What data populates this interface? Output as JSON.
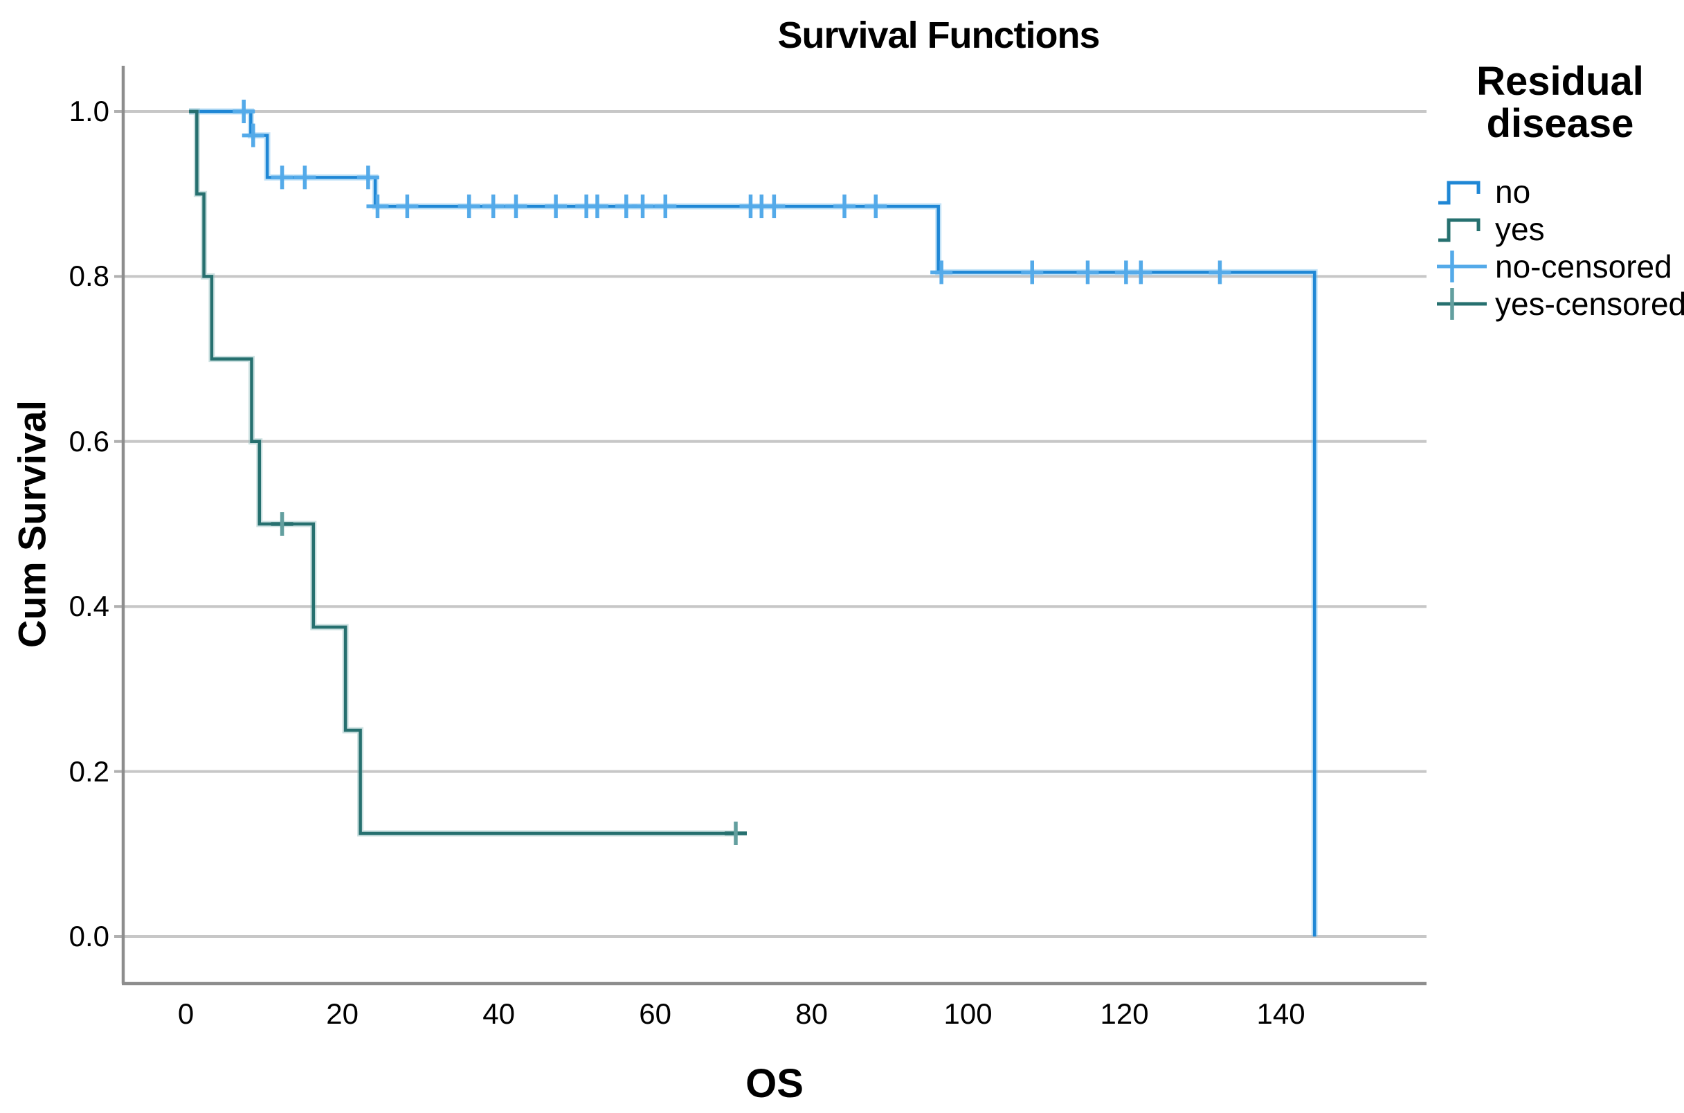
{
  "title": "Survival Functions",
  "axes": {
    "x_label": "OS",
    "y_label": "Cum Survival"
  },
  "legend": {
    "title": "Residual disease",
    "items": [
      {
        "label": "no",
        "type": "step",
        "line_color": "#1f87d5",
        "tick_color": "#1f87d5"
      },
      {
        "label": "yes",
        "type": "step",
        "line_color": "#26706f",
        "tick_color": "#26706f"
      },
      {
        "label": "no-censored",
        "type": "plus",
        "line_color": "#54aae9",
        "tick_color": "#54aae9"
      },
      {
        "label": "yes-censored",
        "type": "plus",
        "line_color": "#26706f",
        "tick_color": "#639f9f"
      }
    ]
  },
  "chart_data": {
    "type": "line",
    "subtype": "kaplan-meier-step",
    "title": "Survival Functions",
    "xlabel": "OS",
    "ylabel": "Cum Survival",
    "xlim": [
      -8,
      158.6
    ],
    "ylim": [
      -0.056,
      1.056
    ],
    "x_ticks": [
      0,
      20,
      40,
      60,
      80,
      100,
      120,
      140
    ],
    "y_ticks": [
      0.0,
      0.2,
      0.4,
      0.6,
      0.8,
      1.0
    ],
    "grid": "horizontal",
    "legend_position": "right",
    "series": [
      {
        "name": "no",
        "color": "#1f87d5",
        "halo_color": "#7cc0ee",
        "censor_h_color": "#54aae9",
        "censor_v_color": "#54aae9",
        "steps": [
          [
            0.4,
            1.0
          ],
          [
            8.3,
            1.0
          ],
          [
            8.3,
            0.971
          ],
          [
            10.4,
            0.971
          ],
          [
            10.4,
            0.92
          ],
          [
            24.2,
            0.92
          ],
          [
            24.2,
            0.885
          ],
          [
            96.2,
            0.885
          ],
          [
            96.2,
            0.805
          ],
          [
            144.3,
            0.805
          ],
          [
            144.3,
            0.0
          ]
        ],
        "censors": [
          [
            7.4,
            1.0
          ],
          [
            8.6,
            0.971
          ],
          [
            12.3,
            0.92
          ],
          [
            15.2,
            0.92
          ],
          [
            23.3,
            0.92
          ],
          [
            24.5,
            0.885
          ],
          [
            28.3,
            0.885
          ],
          [
            36.2,
            0.885
          ],
          [
            39.3,
            0.885
          ],
          [
            42.2,
            0.885
          ],
          [
            47.3,
            0.885
          ],
          [
            51.2,
            0.885
          ],
          [
            52.6,
            0.885
          ],
          [
            56.3,
            0.885
          ],
          [
            58.4,
            0.885
          ],
          [
            61.3,
            0.885
          ],
          [
            72.2,
            0.885
          ],
          [
            73.6,
            0.885
          ],
          [
            75.2,
            0.885
          ],
          [
            84.2,
            0.885
          ],
          [
            88.2,
            0.885
          ],
          [
            96.6,
            0.805
          ],
          [
            108.2,
            0.805
          ],
          [
            115.3,
            0.805
          ],
          [
            120.2,
            0.805
          ],
          [
            122.1,
            0.805
          ],
          [
            132.2,
            0.805
          ]
        ]
      },
      {
        "name": "yes",
        "color": "#26706f",
        "halo_color": "#8fbcbc",
        "censor_h_color": "#26706f",
        "censor_v_color": "#639f9f",
        "steps": [
          [
            0.4,
            1.0
          ],
          [
            1.4,
            1.0
          ],
          [
            1.4,
            0.9
          ],
          [
            2.3,
            0.9
          ],
          [
            2.3,
            0.8
          ],
          [
            3.3,
            0.8
          ],
          [
            3.3,
            0.7
          ],
          [
            8.4,
            0.7
          ],
          [
            8.4,
            0.6
          ],
          [
            9.4,
            0.6
          ],
          [
            9.4,
            0.5
          ],
          [
            16.3,
            0.5
          ],
          [
            16.3,
            0.375
          ],
          [
            20.4,
            0.375
          ],
          [
            20.4,
            0.25
          ],
          [
            22.3,
            0.25
          ],
          [
            22.3,
            0.125
          ],
          [
            70.3,
            0.125
          ]
        ],
        "censors": [
          [
            12.3,
            0.5
          ],
          [
            70.3,
            0.125
          ]
        ]
      }
    ]
  },
  "colors": {
    "background": "#ffffff",
    "grid": "#c7c7c7",
    "axis": "#8d8d8d",
    "minor_tick": "#b0b0b0",
    "text": "#000000"
  }
}
